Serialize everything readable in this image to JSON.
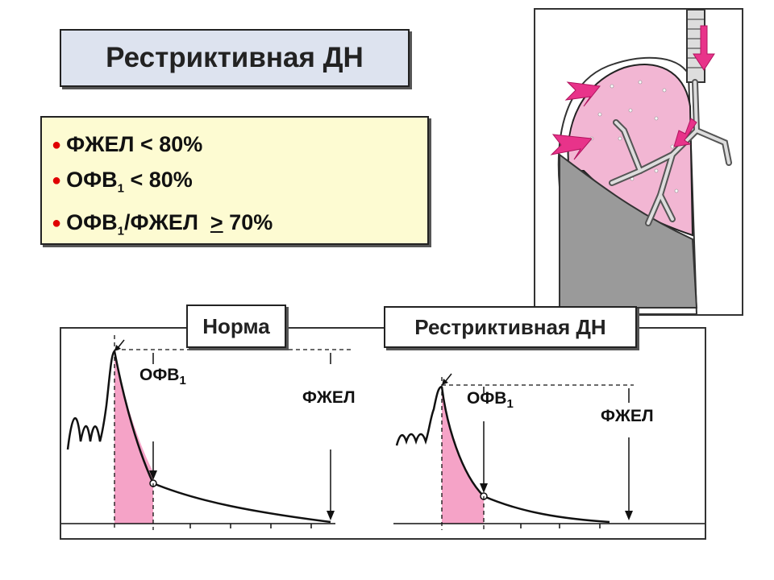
{
  "slide": {
    "title": "Рестриктивная ДН",
    "criteria": [
      {
        "pre": "ФЖЕЛ < 80%"
      },
      {
        "pre": "ОФВ",
        "sub": "1",
        "post": " < 80%"
      },
      {
        "pre": "ОФВ",
        "sub": "1",
        "post": "/ФЖЕЛ  ",
        "underlined": ">",
        "tail": " 70%"
      }
    ]
  },
  "plots": {
    "normal": {
      "label": "Норма",
      "fev_label": "ОФВ",
      "fev_sub": "1",
      "fvc_label": "ФЖЕЛ"
    },
    "restrictive": {
      "label": "Рестриктивная ДН",
      "fev_label": "ОФВ",
      "fev_sub": "1",
      "fvc_label": "ФЖЕЛ"
    }
  },
  "colors": {
    "bullet": "#e00000",
    "fill_pink": "#f5a3c7",
    "lung_pink": "#f2b6d3",
    "pleura_gray": "#9a9a9a",
    "arrow_magenta": "#e8338a"
  }
}
